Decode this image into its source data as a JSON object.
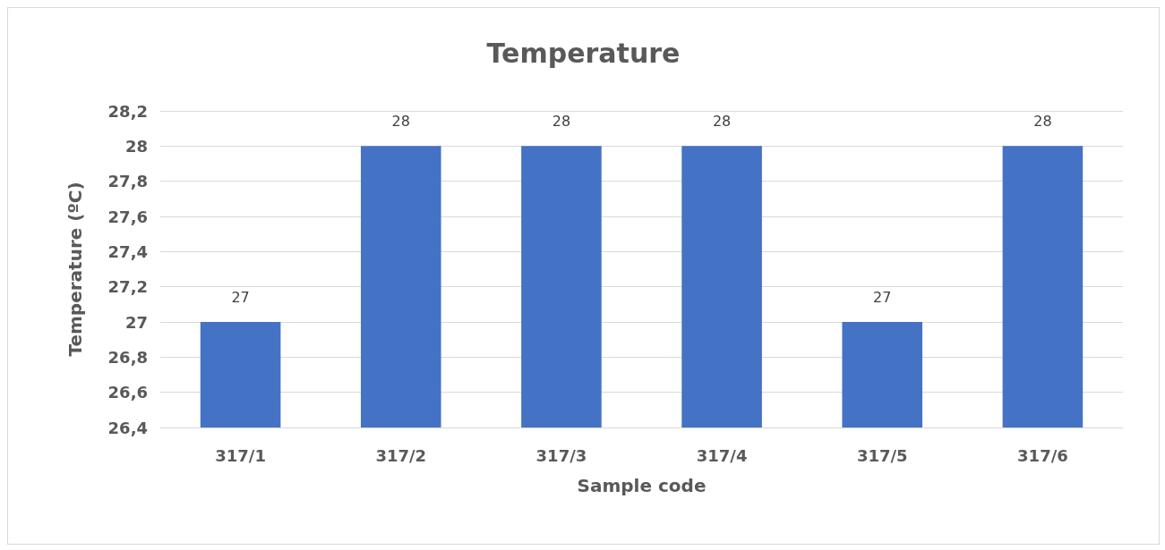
{
  "chart_data": {
    "type": "bar",
    "title": "Temperature",
    "xlabel": "Sample code",
    "ylabel": "Temperature (ºC)",
    "categories": [
      "317/1",
      "317/2",
      "317/3",
      "317/4",
      "317/5",
      "317/6"
    ],
    "values": [
      27,
      28,
      28,
      28,
      27,
      28
    ],
    "color": "#4472c4",
    "ylim": [
      26.4,
      28.2
    ],
    "yticks": [
      {
        "value": 26.4,
        "label": "26,4"
      },
      {
        "value": 26.6,
        "label": "26,6"
      },
      {
        "value": 26.8,
        "label": "26,8"
      },
      27,
      {
        "value": 27.2,
        "label": "27,2"
      },
      {
        "value": 27.4,
        "label": "27,4"
      },
      {
        "value": 27.6,
        "label": "27,6"
      },
      {
        "value": 27.8,
        "label": "27,8"
      },
      28,
      {
        "value": 28.2,
        "label": "28,2"
      }
    ],
    "grid": "y",
    "data_labels": true
  }
}
